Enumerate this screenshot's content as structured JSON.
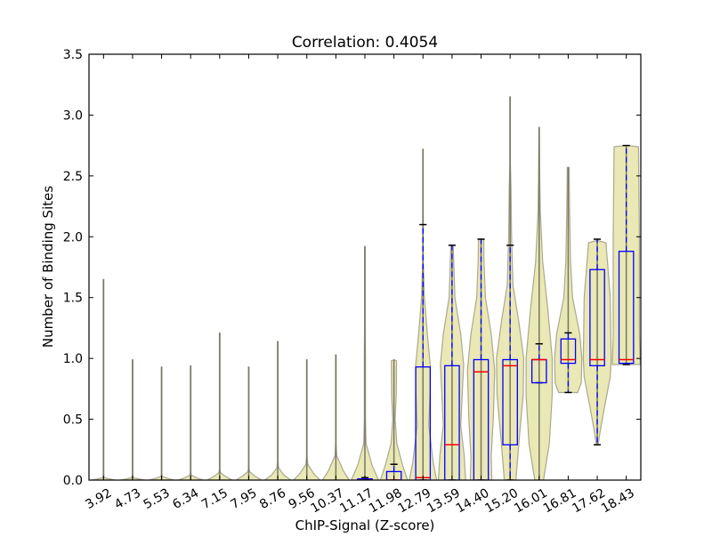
{
  "chart_data": {
    "type": "violin+box",
    "title": "Correlation: 0.4054",
    "xlabel": "ChIP-Signal (Z-score)",
    "ylabel": "Number of Binding Sites",
    "ylim": [
      0,
      3.5
    ],
    "yticks": [
      "0.0",
      "0.5",
      "1.0",
      "1.5",
      "2.0",
      "2.5",
      "3.0",
      "3.5"
    ],
    "categories": [
      "3.92",
      "4.73",
      "5.53",
      "6.34",
      "7.15",
      "7.95",
      "8.76",
      "9.56",
      "10.37",
      "11.17",
      "11.98",
      "12.79",
      "13.59",
      "14.40",
      "15.20",
      "16.01",
      "16.81",
      "17.62",
      "18.43"
    ],
    "max_values": [
      1.65,
      0.99,
      0.93,
      0.94,
      1.21,
      0.93,
      1.14,
      0.99,
      1.03,
      1.92,
      0.99,
      2.72,
      1.93,
      1.98,
      3.15,
      2.9,
      2.57,
      1.98,
      2.75
    ],
    "violins": [
      [
        [
          0,
          0.42
        ],
        [
          0.01,
          0.2
        ],
        [
          0.02,
          0.03
        ],
        [
          0.03,
          0.01
        ],
        [
          1.65,
          0.01
        ]
      ],
      [
        [
          0,
          0.42
        ],
        [
          0.01,
          0.2
        ],
        [
          0.02,
          0.03
        ],
        [
          0.03,
          0.01
        ],
        [
          0.99,
          0.01
        ]
      ],
      [
        [
          0,
          0.43
        ],
        [
          0.015,
          0.2
        ],
        [
          0.03,
          0.03
        ],
        [
          0.045,
          0.01
        ],
        [
          0.93,
          0.01
        ]
      ],
      [
        [
          0,
          0.43
        ],
        [
          0.02,
          0.2
        ],
        [
          0.04,
          0.03
        ],
        [
          0.06,
          0.01
        ],
        [
          0.94,
          0.01
        ]
      ],
      [
        [
          0,
          0.44
        ],
        [
          0.03,
          0.2
        ],
        [
          0.06,
          0.03
        ],
        [
          0.09,
          0.01
        ],
        [
          1.21,
          0.01
        ]
      ],
      [
        [
          0,
          0.44
        ],
        [
          0.035,
          0.2
        ],
        [
          0.07,
          0.03
        ],
        [
          0.1,
          0.01
        ],
        [
          0.93,
          0.01
        ]
      ],
      [
        [
          0,
          0.45
        ],
        [
          0.04,
          0.22
        ],
        [
          0.1,
          0.03
        ],
        [
          0.15,
          0.01
        ],
        [
          1.14,
          0.01
        ]
      ],
      [
        [
          0,
          0.46
        ],
        [
          0.05,
          0.25
        ],
        [
          0.13,
          0.03
        ],
        [
          0.2,
          0.01
        ],
        [
          0.99,
          0.01
        ]
      ],
      [
        [
          0,
          0.46
        ],
        [
          0.08,
          0.25
        ],
        [
          0.2,
          0.03
        ],
        [
          0.3,
          0.01
        ],
        [
          1.03,
          0.01
        ]
      ],
      [
        [
          0,
          0.47
        ],
        [
          0.12,
          0.25
        ],
        [
          0.3,
          0.04
        ],
        [
          0.5,
          0.02
        ],
        [
          1.0,
          0.02
        ],
        [
          1.3,
          0.01
        ],
        [
          1.92,
          0.01
        ]
      ],
      [
        [
          0,
          0.47
        ],
        [
          0.12,
          0.3
        ],
        [
          0.3,
          0.1
        ],
        [
          0.5,
          0.04
        ],
        [
          0.7,
          0.08
        ],
        [
          0.98,
          0.09
        ],
        [
          0.99,
          0
        ]
      ],
      [
        [
          0,
          0.47
        ],
        [
          0.15,
          0.35
        ],
        [
          0.45,
          0.2
        ],
        [
          0.75,
          0.25
        ],
        [
          0.95,
          0.25
        ],
        [
          1.2,
          0.15
        ],
        [
          1.5,
          0.05
        ],
        [
          1.8,
          0.01
        ],
        [
          2.72,
          0.01
        ]
      ],
      [
        [
          0,
          0.47
        ],
        [
          0.2,
          0.42
        ],
        [
          0.45,
          0.3
        ],
        [
          0.7,
          0.35
        ],
        [
          0.95,
          0.4
        ],
        [
          1.2,
          0.3
        ],
        [
          1.5,
          0.1
        ],
        [
          1.93,
          0.04
        ]
      ],
      [
        [
          0,
          0.37
        ],
        [
          0.2,
          0.35
        ],
        [
          0.5,
          0.42
        ],
        [
          0.9,
          0.47
        ],
        [
          1.2,
          0.35
        ],
        [
          1.5,
          0.15
        ],
        [
          1.8,
          0.1
        ],
        [
          1.98,
          0.09
        ]
      ],
      [
        [
          0,
          0.2
        ],
        [
          0.3,
          0.3
        ],
        [
          0.7,
          0.45
        ],
        [
          1.0,
          0.47
        ],
        [
          1.3,
          0.3
        ],
        [
          1.6,
          0.1
        ],
        [
          2.0,
          0.05
        ],
        [
          2.4,
          0.03
        ],
        [
          2.6,
          0.01
        ],
        [
          3.15,
          0.01
        ]
      ],
      [
        [
          0,
          0.15
        ],
        [
          0.3,
          0.35
        ],
        [
          0.7,
          0.45
        ],
        [
          1.0,
          0.45
        ],
        [
          1.4,
          0.3
        ],
        [
          1.8,
          0.12
        ],
        [
          2.2,
          0.04
        ],
        [
          2.5,
          0.02
        ],
        [
          2.9,
          0.01
        ]
      ],
      [
        [
          0.72,
          0.33
        ],
        [
          0.8,
          0.45
        ],
        [
          1.0,
          0.47
        ],
        [
          1.2,
          0.4
        ],
        [
          1.5,
          0.15
        ],
        [
          1.8,
          0.08
        ],
        [
          2.2,
          0.05
        ],
        [
          2.57,
          0.03
        ]
      ],
      [
        [
          0.29,
          0.03
        ],
        [
          0.4,
          0.1
        ],
        [
          0.6,
          0.25
        ],
        [
          0.85,
          0.45
        ],
        [
          1.0,
          0.48
        ],
        [
          1.5,
          0.45
        ],
        [
          1.95,
          0.3
        ],
        [
          1.97,
          0.01
        ]
      ],
      [
        [
          0.95,
          0.48
        ],
        [
          1.2,
          0.45
        ],
        [
          2.0,
          0.45
        ],
        [
          2.74,
          0.42
        ],
        [
          2.75,
          0.01
        ]
      ]
    ],
    "boxes": [
      null,
      null,
      null,
      null,
      null,
      null,
      null,
      null,
      null,
      {
        "lo": 0,
        "q1": 0,
        "median": 0,
        "q3": 0.01,
        "hi": 0.02
      },
      {
        "lo": 0,
        "q1": 0,
        "median": 0,
        "q3": 0.07,
        "hi": 0.13
      },
      {
        "lo": 0,
        "q1": 0,
        "median": 0.02,
        "q3": 0.93,
        "hi": 2.1
      },
      {
        "lo": 0,
        "q1": 0,
        "median": 0.29,
        "q3": 0.94,
        "hi": 1.93
      },
      {
        "lo": 0,
        "q1": 0,
        "median": 0.89,
        "q3": 0.99,
        "hi": 1.98
      },
      {
        "lo": 0,
        "q1": 0.29,
        "median": 0.94,
        "q3": 0.99,
        "hi": 1.93
      },
      {
        "lo": 0.8,
        "q1": 0.8,
        "median": 0.99,
        "q3": 0.99,
        "hi": 1.12
      },
      {
        "lo": 0.72,
        "q1": 0.96,
        "median": 0.99,
        "q3": 1.16,
        "hi": 1.21
      },
      {
        "lo": 0.29,
        "q1": 0.94,
        "median": 0.99,
        "q3": 1.73,
        "hi": 1.98
      },
      {
        "lo": 0.95,
        "q1": 0.96,
        "median": 0.99,
        "q3": 1.88,
        "hi": 2.75
      }
    ],
    "colors": {
      "violin_fill": "#e9e7b1",
      "violin_edge": "#a5a58a",
      "spike": "#777766",
      "box": "#0000ff",
      "median": "#ff0000",
      "cap": "#000000"
    },
    "grid": false
  }
}
